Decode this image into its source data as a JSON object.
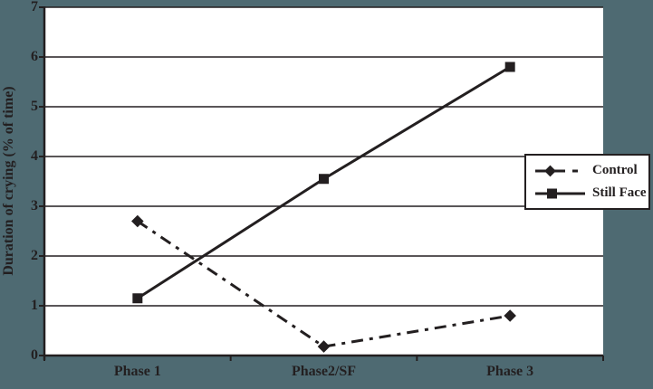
{
  "colors": {
    "background": "#4E6A72",
    "plot_background": "#FFFFFF",
    "ink": "#231F20"
  },
  "chart_data": {
    "type": "line",
    "title": "",
    "xlabel": "",
    "ylabel": "Duration of crying (% of time)",
    "categories": [
      "Phase 1",
      "Phase2/SF",
      "Phase 3"
    ],
    "yticks": [
      0,
      1,
      2,
      3,
      4,
      5,
      6,
      7
    ],
    "ylim": [
      0,
      7
    ],
    "grid": "horizontal",
    "legend_position": "middle-right",
    "series": [
      {
        "name": "Control",
        "marker": "diamond",
        "line_style": "dash-dot",
        "values": [
          2.7,
          0.18,
          0.8
        ]
      },
      {
        "name": "Still Face",
        "marker": "square",
        "line_style": "solid",
        "values": [
          1.15,
          3.55,
          5.8
        ]
      }
    ]
  }
}
